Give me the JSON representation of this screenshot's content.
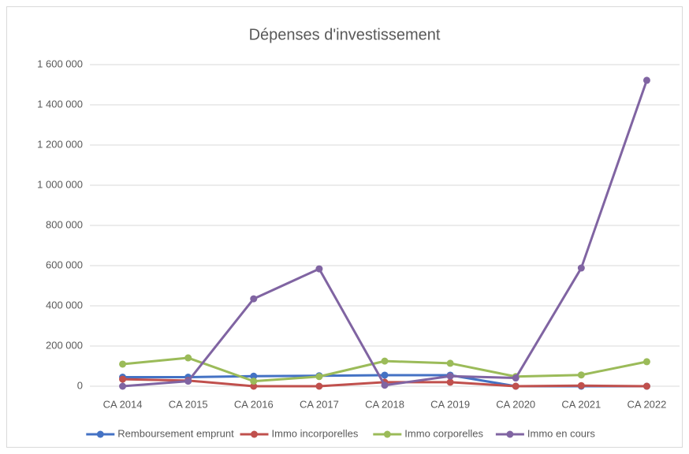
{
  "chart_data": {
    "type": "line",
    "title": "Dépenses d'investissement",
    "categories": [
      "CA 2014",
      "CA 2015",
      "CA 2016",
      "CA 2017",
      "CA 2018",
      "CA 2019",
      "CA 2020",
      "CA 2021",
      "CA 2022"
    ],
    "series": [
      {
        "name": "Remboursement  emprunt",
        "color": "#4472c4",
        "values": [
          45000,
          45000,
          50000,
          52000,
          55000,
          55000,
          0,
          0,
          0
        ]
      },
      {
        "name": "Immo incorporelles",
        "color": "#c0504d",
        "values": [
          35000,
          28000,
          0,
          0,
          20000,
          20000,
          0,
          3000,
          0
        ]
      },
      {
        "name": "Immo corporelles",
        "color": "#9bbb59",
        "values": [
          110000,
          141000,
          25000,
          48000,
          125000,
          114000,
          48000,
          56000,
          122000
        ]
      },
      {
        "name": "Immo en cours",
        "color": "#8064a2",
        "values": [
          0,
          25000,
          435000,
          584000,
          5000,
          50000,
          41000,
          588000,
          1522000
        ]
      }
    ],
    "ylim": [
      0,
      1600000
    ],
    "yticks": [
      0,
      {
        "value": 200000,
        "label": "200 000"
      },
      {
        "value": 400000,
        "label": "400 000"
      },
      {
        "value": 600000,
        "label": "600 000"
      },
      {
        "value": 800000,
        "label": "800 000"
      },
      {
        "value": 1000000,
        "label": "1 000 000"
      },
      {
        "value": 1200000,
        "label": "1 200 000"
      },
      {
        "value": 1400000,
        "label": "1 400 000"
      },
      {
        "value": 1600000,
        "label": "1 600 000"
      }
    ],
    "grid": true,
    "legend": "bottom"
  }
}
